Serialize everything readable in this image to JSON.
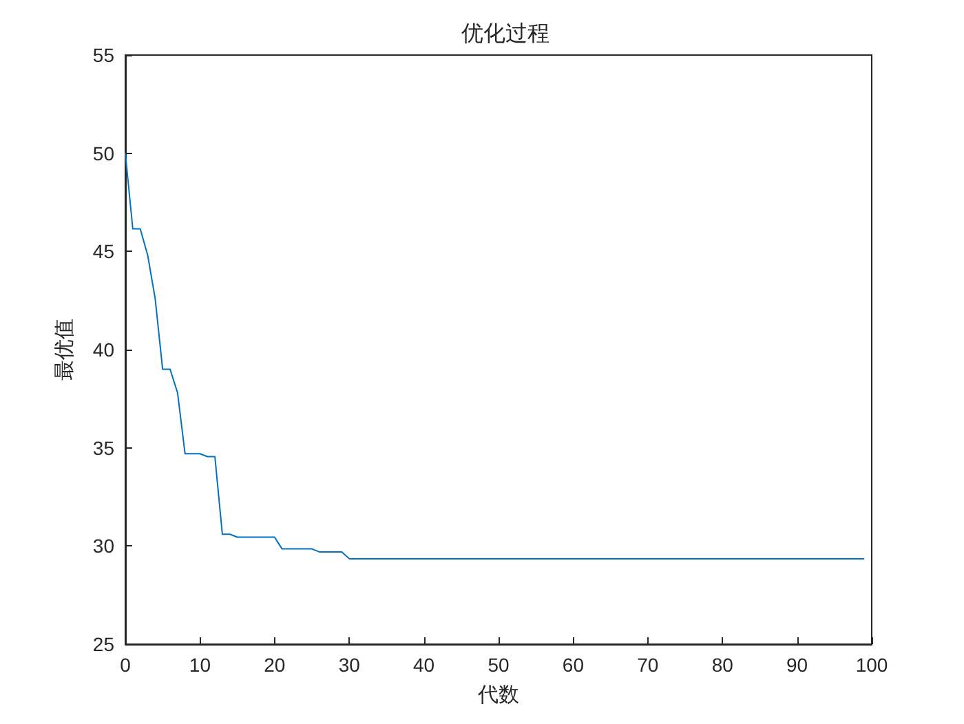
{
  "chart_data": {
    "type": "line",
    "title": "优化过程",
    "xlabel": "代数",
    "ylabel": "最优值",
    "x": [
      0,
      1,
      2,
      3,
      4,
      5,
      6,
      7,
      8,
      10,
      11,
      12,
      13,
      14,
      15,
      20,
      21,
      25,
      26,
      29,
      30,
      99
    ],
    "series": [
      {
        "color": "#0072bd",
        "values": [
          50,
          46.15,
          46.15,
          44.8,
          42.6,
          39,
          39,
          37.8,
          34.7,
          34.7,
          34.55,
          34.55,
          30.6,
          30.6,
          30.45,
          30.45,
          29.85,
          29.85,
          29.7,
          29.7,
          29.35,
          29.35
        ]
      }
    ],
    "xlim": [
      0,
      100
    ],
    "xticks": [
      0,
      10,
      20,
      30,
      40,
      50,
      60,
      70,
      80,
      90,
      100
    ],
    "ylim": [
      25,
      55
    ],
    "yticks": [
      25,
      30,
      35,
      40,
      45,
      50,
      55
    ],
    "grid": false,
    "marker": "none",
    "line_style": "solid"
  }
}
